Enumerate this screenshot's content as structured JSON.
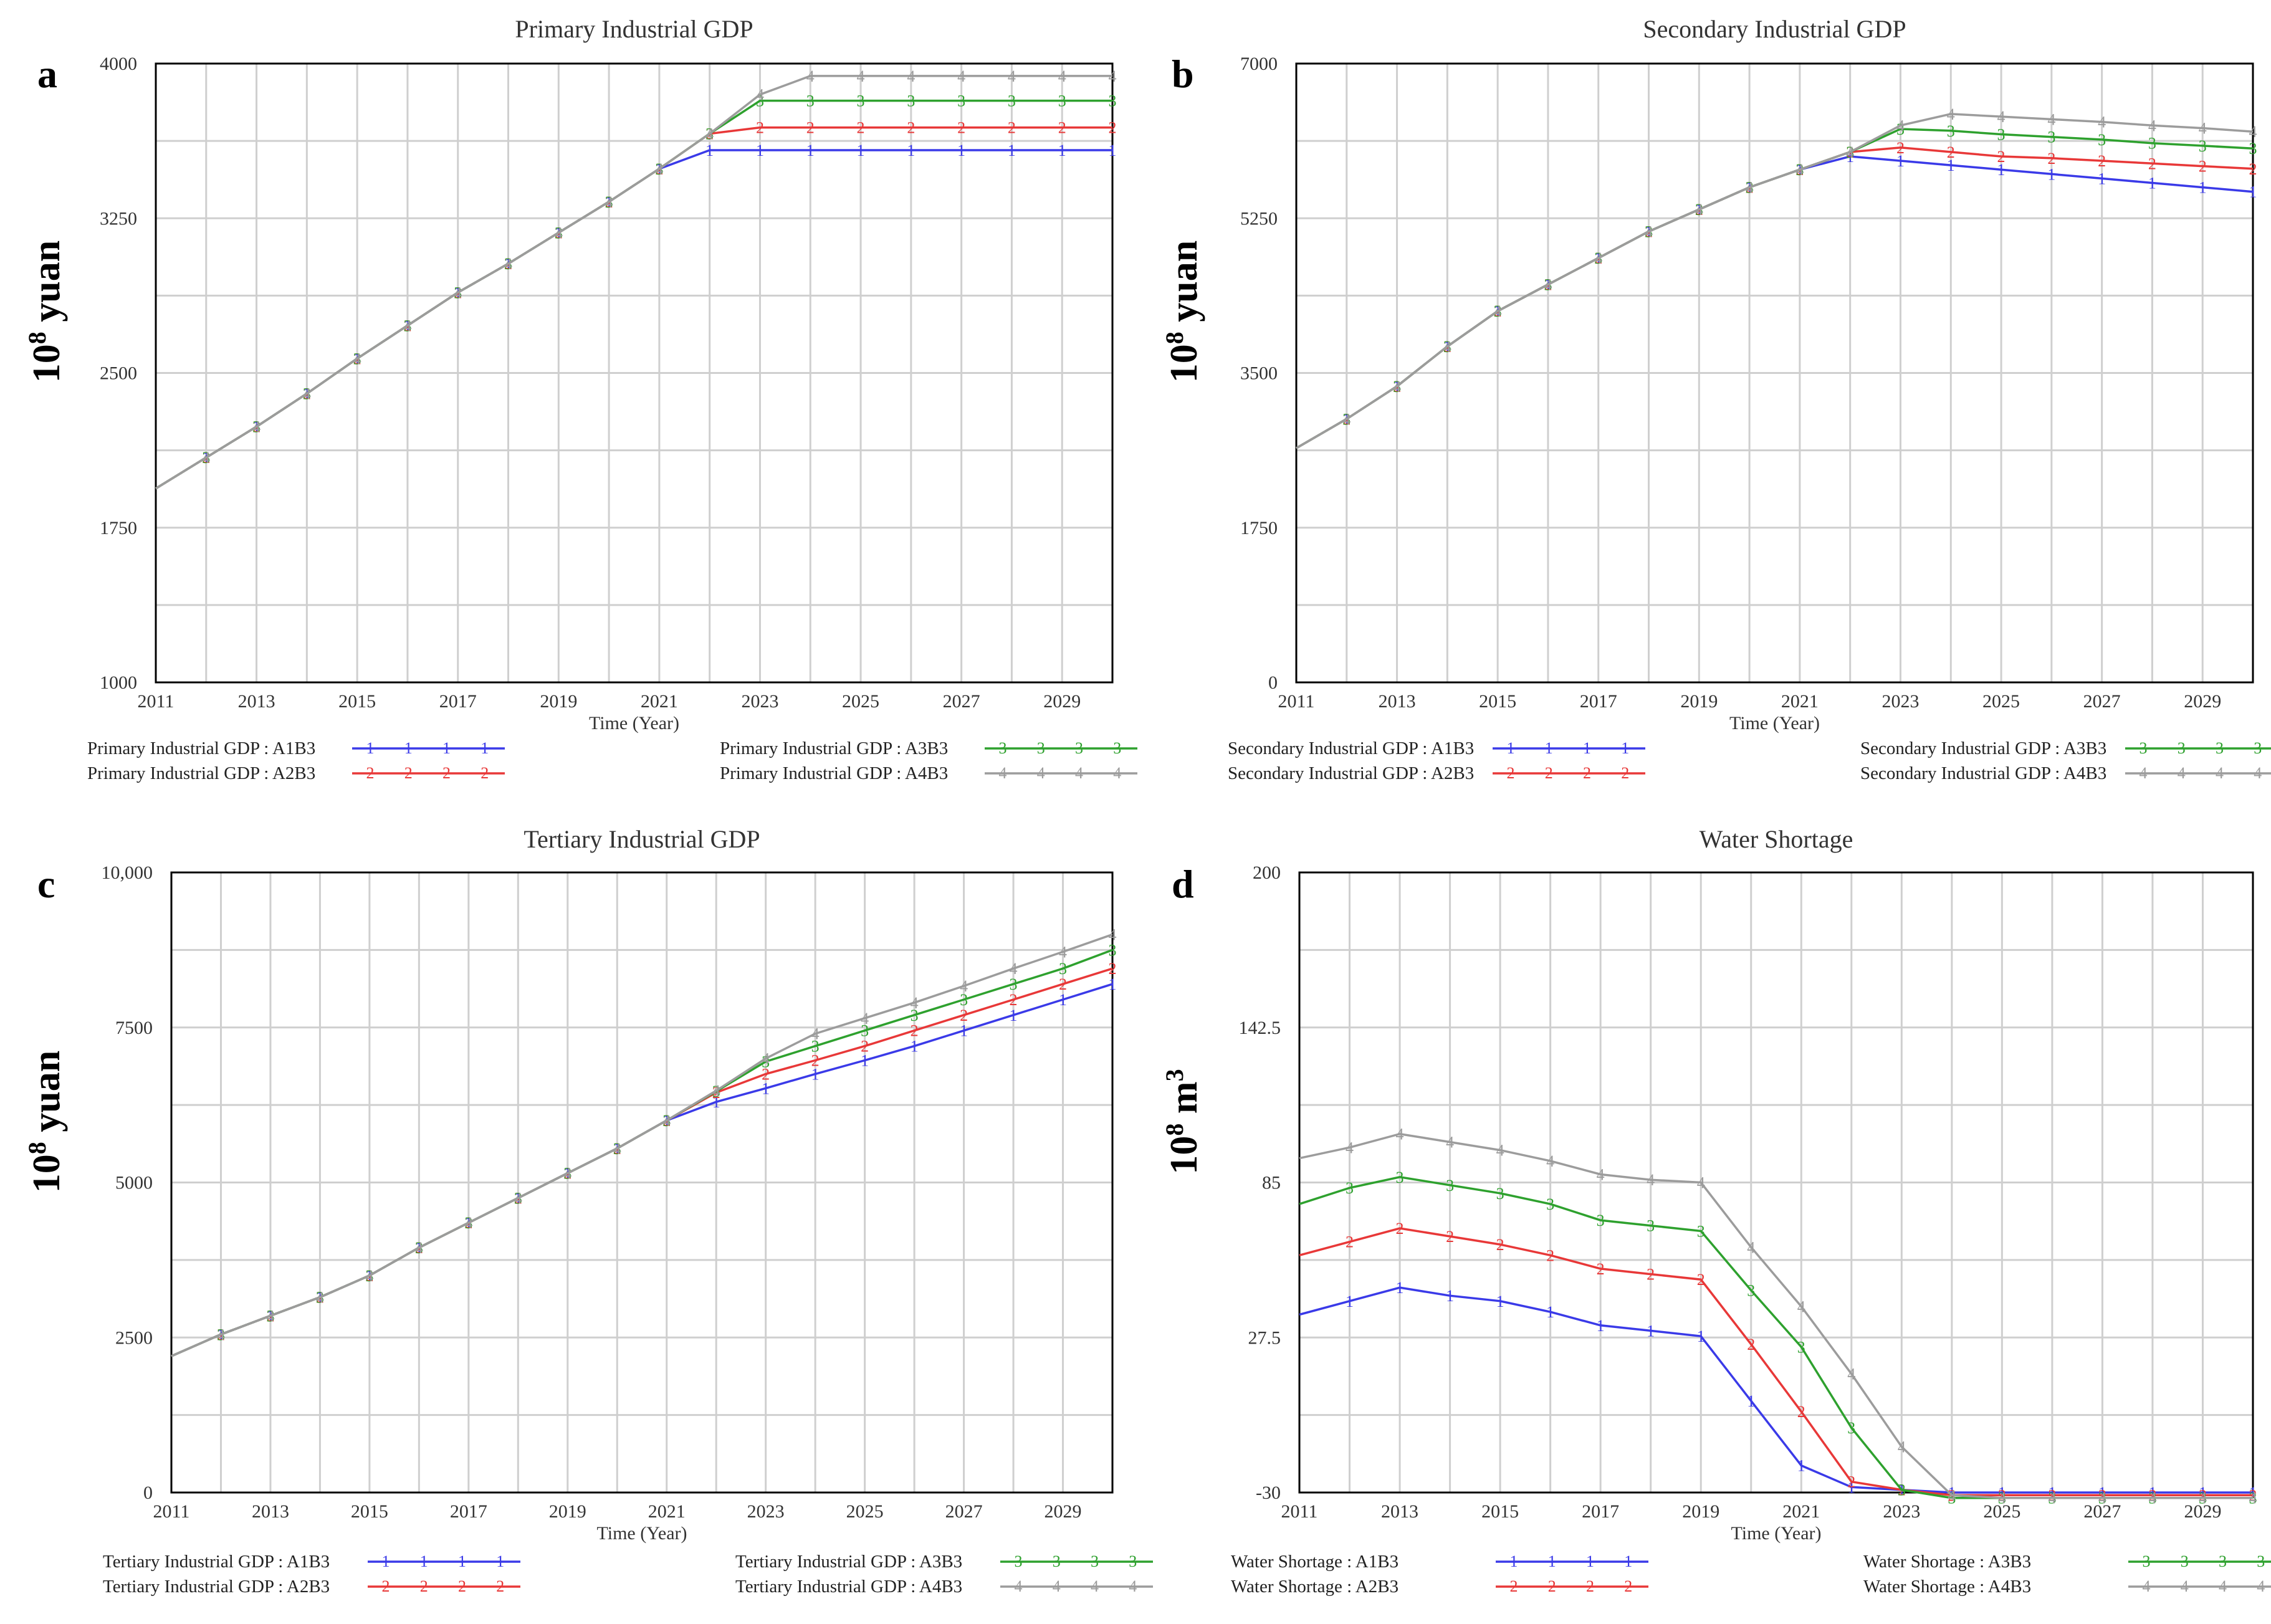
{
  "figure": {
    "colors": {
      "A1B3": "#3a3ae8",
      "A2B3": "#e83838",
      "A3B3": "#2ea12e",
      "A4B3": "#9c9c9c"
    },
    "markers": {
      "A1B3": "1",
      "A2B3": "2",
      "A3B3": "3",
      "A4B3": "4"
    },
    "scenarios": [
      "A1B3",
      "A2B3",
      "A3B3",
      "A4B3"
    ]
  },
  "chart_data": [
    {
      "type": "line",
      "panel": "a",
      "title": "Primary Industrial GDP",
      "xlabel": "Time (Year)",
      "ylabel_base": "10",
      "ylabel_exp": "8",
      "ylabel_unit": " yuan",
      "x": [
        2011,
        2012,
        2013,
        2014,
        2015,
        2016,
        2017,
        2018,
        2019,
        2020,
        2021,
        2022,
        2023,
        2024,
        2025,
        2026,
        2027,
        2028,
        2029,
        2030
      ],
      "xlim": [
        2011,
        2030
      ],
      "ylim": [
        1000,
        4000
      ],
      "yticks": [
        1000,
        1750,
        2500,
        3250,
        4000
      ],
      "ytick_labels": [
        "1000",
        "1750",
        "2500",
        "3250",
        "4000"
      ],
      "xtick_labels": [
        "2011",
        "2013",
        "2015",
        "2017",
        "2019",
        "2021",
        "2023",
        "2025",
        "2027",
        "2029"
      ],
      "series": [
        {
          "name": "Primary Industrial GDP : A1B3",
          "key": "A1B3",
          "values": [
            1940,
            2090,
            2240,
            2400,
            2570,
            2730,
            2890,
            3030,
            3180,
            3330,
            3490,
            3580,
            3580,
            3580,
            3580,
            3580,
            3580,
            3580,
            3580,
            3580
          ]
        },
        {
          "name": "Primary Industrial GDP : A2B3",
          "key": "A2B3",
          "values": [
            1940,
            2090,
            2240,
            2400,
            2570,
            2730,
            2890,
            3030,
            3180,
            3330,
            3490,
            3660,
            3690,
            3690,
            3690,
            3690,
            3690,
            3690,
            3690,
            3690
          ]
        },
        {
          "name": "Primary Industrial GDP : A3B3",
          "key": "A3B3",
          "values": [
            1940,
            2090,
            2240,
            2400,
            2570,
            2730,
            2890,
            3030,
            3180,
            3330,
            3490,
            3660,
            3820,
            3820,
            3820,
            3820,
            3820,
            3820,
            3820,
            3820
          ]
        },
        {
          "name": "Primary Industrial GDP : A4B3",
          "key": "A4B3",
          "values": [
            1940,
            2090,
            2240,
            2400,
            2570,
            2730,
            2890,
            3030,
            3180,
            3330,
            3490,
            3660,
            3850,
            3940,
            3940,
            3940,
            3940,
            3940,
            3940,
            3940
          ]
        }
      ]
    },
    {
      "type": "line",
      "panel": "b",
      "title": "Secondary Industrial GDP",
      "xlabel": "Time (Year)",
      "ylabel_base": "10",
      "ylabel_exp": "8",
      "ylabel_unit": " yuan",
      "x": [
        2011,
        2012,
        2013,
        2014,
        2015,
        2016,
        2017,
        2018,
        2019,
        2020,
        2021,
        2022,
        2023,
        2024,
        2025,
        2026,
        2027,
        2028,
        2029,
        2030
      ],
      "xlim": [
        2011,
        2030
      ],
      "ylim": [
        0,
        7000
      ],
      "yticks": [
        0,
        1750,
        3500,
        5250,
        7000
      ],
      "ytick_labels": [
        "0",
        "1750",
        "3500",
        "5250",
        "7000"
      ],
      "xtick_labels": [
        "2011",
        "2013",
        "2015",
        "2017",
        "2019",
        "2021",
        "2023",
        "2025",
        "2027",
        "2029"
      ],
      "series": [
        {
          "name": "Secondary Industrial GDP : A1B3",
          "key": "A1B3",
          "values": [
            2650,
            2980,
            3350,
            3800,
            4200,
            4500,
            4800,
            5100,
            5350,
            5600,
            5800,
            5950,
            5900,
            5850,
            5800,
            5750,
            5700,
            5650,
            5600,
            5550
          ]
        },
        {
          "name": "Secondary Industrial GDP : A2B3",
          "key": "A2B3",
          "values": [
            2650,
            2980,
            3350,
            3800,
            4200,
            4500,
            4800,
            5100,
            5350,
            5600,
            5800,
            6000,
            6050,
            6000,
            5950,
            5930,
            5900,
            5870,
            5840,
            5810
          ]
        },
        {
          "name": "Secondary Industrial GDP : A3B3",
          "key": "A3B3",
          "values": [
            2650,
            2980,
            3350,
            3800,
            4200,
            4500,
            4800,
            5100,
            5350,
            5600,
            5800,
            6000,
            6260,
            6240,
            6200,
            6170,
            6140,
            6100,
            6070,
            6040
          ]
        },
        {
          "name": "Secondary Industrial GDP : A4B3",
          "key": "A4B3",
          "values": [
            2650,
            2980,
            3350,
            3800,
            4200,
            4500,
            4800,
            5100,
            5350,
            5600,
            5800,
            6000,
            6300,
            6430,
            6400,
            6370,
            6340,
            6300,
            6270,
            6230
          ]
        }
      ]
    },
    {
      "type": "line",
      "panel": "c",
      "title": "Tertiary Industrial GDP",
      "xlabel": "Time (Year)",
      "ylabel_base": "10",
      "ylabel_exp": "8",
      "ylabel_unit": " yuan",
      "x": [
        2011,
        2012,
        2013,
        2014,
        2015,
        2016,
        2017,
        2018,
        2019,
        2020,
        2021,
        2022,
        2023,
        2024,
        2025,
        2026,
        2027,
        2028,
        2029,
        2030
      ],
      "xlim": [
        2011,
        2030
      ],
      "ylim": [
        0,
        10000
      ],
      "yticks": [
        0,
        2500,
        5000,
        7500,
        10000
      ],
      "ytick_labels": [
        "0",
        "2500",
        "5000",
        "7500",
        "10,000"
      ],
      "xtick_labels": [
        "2011",
        "2013",
        "2015",
        "2017",
        "2019",
        "2021",
        "2023",
        "2025",
        "2027",
        "2029"
      ],
      "series": [
        {
          "name": "Tertiary Industrial GDP : A1B3",
          "key": "A1B3",
          "values": [
            2200,
            2550,
            2850,
            3150,
            3500,
            3950,
            4350,
            4750,
            5150,
            5550,
            6000,
            6300,
            6520,
            6750,
            6970,
            7200,
            7450,
            7700,
            7950,
            8200
          ]
        },
        {
          "name": "Tertiary Industrial GDP : A2B3",
          "key": "A2B3",
          "values": [
            2200,
            2550,
            2850,
            3150,
            3500,
            3950,
            4350,
            4750,
            5150,
            5550,
            6000,
            6450,
            6750,
            6970,
            7200,
            7450,
            7700,
            7950,
            8200,
            8450
          ]
        },
        {
          "name": "Tertiary Industrial GDP : A3B3",
          "key": "A3B3",
          "values": [
            2200,
            2550,
            2850,
            3150,
            3500,
            3950,
            4350,
            4750,
            5150,
            5550,
            6000,
            6470,
            6950,
            7200,
            7450,
            7700,
            7950,
            8200,
            8450,
            8750
          ]
        },
        {
          "name": "Tertiary Industrial GDP : A4B3",
          "key": "A4B3",
          "values": [
            2200,
            2550,
            2850,
            3150,
            3500,
            3950,
            4350,
            4750,
            5150,
            5550,
            6000,
            6480,
            7000,
            7400,
            7650,
            7900,
            8170,
            8450,
            8720,
            9000
          ]
        }
      ]
    },
    {
      "type": "line",
      "panel": "d",
      "title": "Water Shortage",
      "xlabel": "Time (Year)",
      "ylabel_base": "10",
      "ylabel_exp": "8",
      "ylabel_unit": " m",
      "ylabel_sup2": "3",
      "x": [
        2011,
        2012,
        2013,
        2014,
        2015,
        2016,
        2017,
        2018,
        2019,
        2020,
        2021,
        2022,
        2023,
        2024,
        2025,
        2026,
        2027,
        2028,
        2029,
        2030
      ],
      "xlim": [
        2011,
        2030
      ],
      "ylim": [
        -30,
        200
      ],
      "yticks": [
        -30,
        27.5,
        85,
        142.5,
        200
      ],
      "ytick_labels": [
        "-30",
        "27.5",
        "85",
        "142.5",
        "200"
      ],
      "xtick_labels": [
        "2011",
        "2013",
        "2015",
        "2017",
        "2019",
        "2021",
        "2023",
        "2025",
        "2027",
        "2029"
      ],
      "series": [
        {
          "name": "Water Shortage : A1B3",
          "key": "A1B3",
          "values": [
            36,
            41,
            46,
            43,
            41,
            37,
            32,
            30,
            28,
            4,
            -20,
            -28,
            -29,
            -30,
            -30,
            -30,
            -30,
            -30,
            -30,
            -30
          ]
        },
        {
          "name": "Water Shortage : A2B3",
          "key": "A2B3",
          "values": [
            58,
            63,
            68,
            65,
            62,
            58,
            53,
            51,
            49,
            25,
            0,
            -26,
            -29,
            -31,
            -31,
            -31,
            -31,
            -31,
            -31,
            -31
          ]
        },
        {
          "name": "Water Shortage : A3B3",
          "key": "A3B3",
          "values": [
            77,
            83,
            87,
            84,
            81,
            77,
            71,
            69,
            67,
            45,
            24,
            -6,
            -29,
            -32,
            -32,
            -32,
            -32,
            -32,
            -32,
            -32
          ]
        },
        {
          "name": "Water Shortage : A4B3",
          "key": "A4B3",
          "values": [
            94,
            98,
            103,
            100,
            97,
            93,
            88,
            86,
            85,
            61,
            39,
            14,
            -13,
            -31,
            -32,
            -32,
            -32,
            -32,
            -32,
            -32
          ]
        }
      ]
    }
  ]
}
